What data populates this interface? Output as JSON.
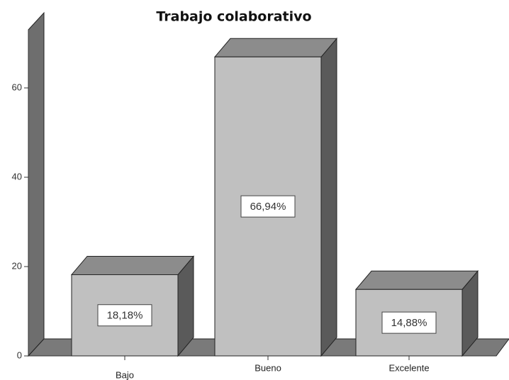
{
  "chart_data": {
    "type": "bar",
    "title": "Trabajo colaborativo",
    "categories": [
      "Bajo",
      "Bueno",
      "Excelente"
    ],
    "values": [
      18.18,
      66.94,
      14.88
    ],
    "value_labels": [
      "18,18%",
      "66,94%",
      "14,88%"
    ],
    "color": "#c0c0c0",
    "ylim": [
      0,
      75
    ],
    "yticks": [
      0,
      20,
      40,
      60
    ]
  }
}
